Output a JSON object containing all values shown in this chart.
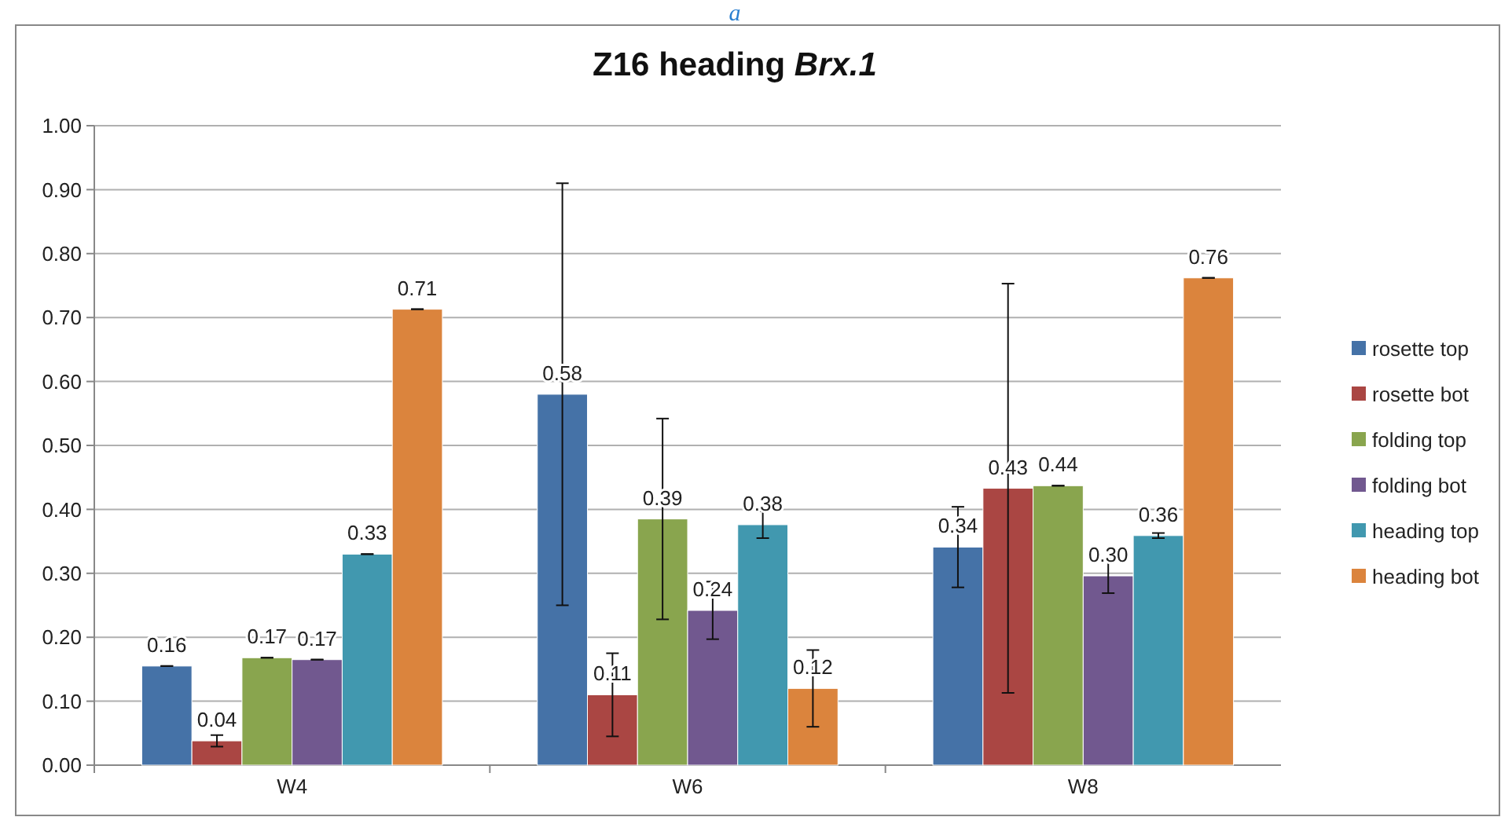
{
  "chart_data": {
    "type": "bar",
    "title": "Z16 heading $_{}$Brx.1",
    "annotations": [
      "a"
    ],
    "categories": [
      "W4",
      "W6",
      "W8"
    ],
    "series": [
      {
        "name": "rosette top",
        "color": "#4572a7",
        "values": [
          0.155,
          0.58,
          0.341
        ],
        "errors": [
          0,
          0.33,
          0.063
        ],
        "value_labels": [
          "0.16",
          "0.58",
          "0.34"
        ]
      },
      {
        "name": "rosette bot",
        "color": "#aa4643",
        "values": [
          0.038,
          0.11,
          0.433
        ],
        "errors": [
          0.009,
          0.065,
          0.32
        ],
        "value_labels": [
          "0.04",
          "0.11",
          "0.43"
        ]
      },
      {
        "name": "folding top",
        "color": "#89a54e",
        "values": [
          0.168,
          0.385,
          0.437
        ],
        "errors": [
          0,
          0.157,
          0
        ],
        "value_labels": [
          "0.17",
          "0.39",
          "0.44"
        ]
      },
      {
        "name": "folding bot",
        "color": "#71588f",
        "values": [
          0.165,
          0.242,
          0.296
        ],
        "errors": [
          0,
          0.045,
          0.027
        ],
        "value_labels": [
          "0.17",
          "0.24",
          "0.30"
        ]
      },
      {
        "name": "heading top",
        "color": "#4198af",
        "values": [
          0.33,
          0.376,
          0.359
        ],
        "errors": [
          0,
          0.021,
          0.004
        ],
        "value_labels": [
          "0.33",
          "0.38",
          "0.36"
        ]
      },
      {
        "name": "heading bot",
        "color": "#db843d",
        "values": [
          0.713,
          0.12,
          0.762
        ],
        "errors": [
          0,
          0.06,
          0
        ],
        "value_labels": [
          "0.71",
          "0.12",
          "0.76"
        ]
      }
    ],
    "ylim": [
      0,
      1
    ],
    "yticks": [
      {
        "value": 0,
        "label": "0.00"
      },
      {
        "value": 0.1,
        "label": "0.10"
      },
      {
        "value": 0.2,
        "label": "0.20"
      },
      {
        "value": 0.3,
        "label": "0.30"
      },
      {
        "value": 0.4,
        "label": "0.40"
      },
      {
        "value": 0.5,
        "label": "0.50"
      },
      {
        "value": 0.6,
        "label": "0.60"
      },
      {
        "value": 0.7,
        "label": "0.70"
      },
      {
        "value": 0.8,
        "label": "0.80"
      },
      {
        "value": 0.9,
        "label": "0.90"
      },
      {
        "value": 1,
        "label": "1.00"
      }
    ],
    "grid": "y",
    "legend": "right"
  }
}
